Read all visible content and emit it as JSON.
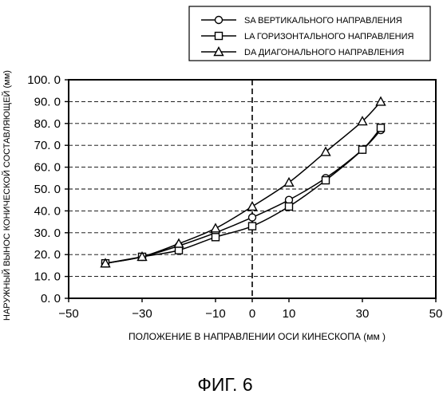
{
  "chart_data": {
    "type": "line",
    "title": "",
    "xlabel": "ПОЛОЖЕНИЕ В НАПРАВЛЕНИИ ОСИ КИНЕСКОПА (мм )",
    "ylabel": "НАРУЖНЫЙ ВЫНОС КОНИЧЕСКОЙ СОСТАВЛЯЮЩЕЙ (мм)",
    "xlim": [
      -50,
      50
    ],
    "ylim": [
      0,
      100
    ],
    "xticks": [
      "−50",
      "−30",
      "−10",
      "0",
      "10",
      "30",
      "50"
    ],
    "xtick_values": [
      -50,
      -30,
      -10,
      0,
      10,
      30,
      50
    ],
    "yticks": [
      "0. 0",
      "10. 0",
      "20. 0",
      "30. 0",
      "40. 0",
      "50. 0",
      "60. 0",
      "70. 0",
      "80. 0",
      "90. 0",
      "100. 0"
    ],
    "ytick_values": [
      0,
      10,
      20,
      30,
      40,
      50,
      60,
      70,
      80,
      90,
      100
    ],
    "grid": "horizontal dashed",
    "zero_line": "vertical dashed at x = 0",
    "legend_position": "top-right, outside plot",
    "series": [
      {
        "name": "SA ВЕРТИКАЛЬНОГО НАПРАВЛЕНИЯ",
        "marker": "circle",
        "x": [
          -40,
          -30,
          -20,
          -10,
          0,
          10,
          20,
          30,
          35
        ],
        "y": [
          16,
          19,
          24,
          30,
          37,
          45,
          55,
          68,
          77
        ]
      },
      {
        "name": "LA ГОРИЗОНТАЛЬНОГО НАПРАВЛЕНИЯ",
        "marker": "square",
        "x": [
          -40,
          -30,
          -20,
          -10,
          0,
          10,
          20,
          30,
          35
        ],
        "y": [
          16,
          19,
          22,
          28,
          33,
          42,
          54,
          68,
          78
        ]
      },
      {
        "name": "DA ДИАГОНАЛЬНОГО НАПРАВЛЕНИЯ",
        "marker": "triangle",
        "x": [
          -40,
          -30,
          -20,
          -10,
          0,
          10,
          20,
          30,
          35
        ],
        "y": [
          16,
          19,
          25,
          32,
          42,
          53,
          67,
          81,
          90
        ]
      }
    ]
  },
  "figure_caption": "ФИГ. 6"
}
